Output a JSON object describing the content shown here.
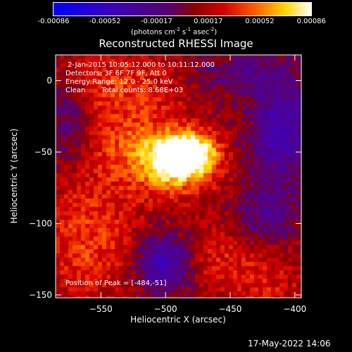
{
  "chart_data": {
    "type": "heatmap",
    "title": "Reconstructed RHESSI Image",
    "xlabel": "Heliocentric X (arcsec)",
    "ylabel": "Heliocentric Y (arcsec)",
    "xlim": [
      -585,
      -395
    ],
    "ylim": [
      -152,
      18
    ],
    "x_ticks": [
      -550,
      -500,
      -450,
      -400
    ],
    "y_ticks": [
      0,
      -50,
      -100,
      -150
    ],
    "colorbar": {
      "min": -0.00086,
      "max": 0.00086,
      "ticks": [
        "-0.00086",
        "-0.00052",
        "-0.00017",
        "0.00017",
        "0.00052",
        "0.00086"
      ],
      "unit_parts": [
        "(photons cm",
        "-2",
        " s",
        "-1",
        " asec",
        "-2",
        ")"
      ]
    },
    "info": {
      "time_range": "2-Jan-2015 10:05:12.000 to 10:11:12.000",
      "detectors": "Detectors: 3F 6F 7F 9F, Att 0",
      "energy": "Energy Range: 12.0 - 25.0 keV",
      "method": "Clean",
      "counts": "Total counts: 8.68E+03"
    },
    "peak_label": "Position of Peak = [-484,-51]",
    "peak": [
      -484,
      -51
    ],
    "sources": [
      {
        "x": -484,
        "y": -51,
        "sx": 16,
        "sy": 10,
        "amp": 1.0
      },
      {
        "x": -495,
        "y": -62,
        "sx": 22,
        "sy": 14,
        "amp": 0.55
      },
      {
        "x": -525,
        "y": -40,
        "sx": 30,
        "sy": 20,
        "amp": 0.35
      },
      {
        "x": -560,
        "y": -110,
        "sx": 25,
        "sy": 30,
        "amp": 0.35
      },
      {
        "x": -470,
        "y": -125,
        "sx": 28,
        "sy": 15,
        "amp": 0.25
      },
      {
        "x": -540,
        "y": 0,
        "sx": 30,
        "sy": 15,
        "amp": 0.28
      },
      {
        "x": -420,
        "y": -140,
        "sx": 20,
        "sy": 15,
        "amp": 0.2
      }
    ],
    "negative_regions": [
      {
        "x": -500,
        "y": -128,
        "sx": 16,
        "sy": 14,
        "amp": 0.75
      },
      {
        "x": -410,
        "y": -35,
        "sx": 18,
        "sy": 25,
        "amp": 0.55
      },
      {
        "x": -575,
        "y": -30,
        "sx": 12,
        "sy": 22,
        "amp": 0.35
      },
      {
        "x": -440,
        "y": 5,
        "sx": 25,
        "sy": 10,
        "amp": 0.3
      },
      {
        "x": -420,
        "y": -95,
        "sx": 15,
        "sy": 15,
        "amp": 0.35
      }
    ]
  },
  "footer": {
    "timestamp": "17-May-2022 14:06"
  }
}
